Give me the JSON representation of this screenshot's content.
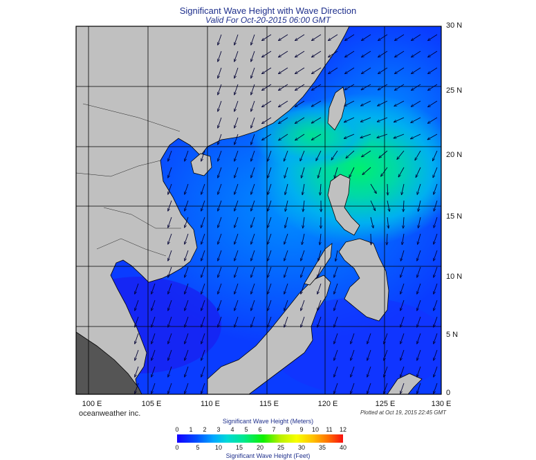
{
  "title": "Significant Wave Height with Wave Direction",
  "subtitle": "Valid For Oct-20-2015 06:00 GMT",
  "latitude_labels": [
    "30 N",
    "25 N",
    "20 N",
    "15 N",
    "10 N",
    "5 N",
    "0"
  ],
  "longitude_labels": [
    "100 E",
    "105 E",
    "110 E",
    "115 E",
    "120 E",
    "125 E",
    "130 E"
  ],
  "credit": "oceanweather inc.",
  "plotted": "Plotted at Oct 19, 2015 22:45 GMT",
  "colorbar": {
    "title_meters": "Significant Wave Height (Meters)",
    "title_feet": "Significant Wave Height (Feet)",
    "meters_ticks": [
      "0",
      "1",
      "2",
      "3",
      "4",
      "5",
      "6",
      "7",
      "8",
      "9",
      "10",
      "11",
      "12"
    ],
    "feet_ticks": [
      "0",
      "5",
      "10",
      "15",
      "20",
      "25",
      "30",
      "35",
      "40"
    ]
  },
  "colors": {
    "land": "#c0c0c0",
    "sea_low": "#1a2cff",
    "sea_mid": "#0088ff",
    "peak": "#00e890",
    "title": "#1e2f8c"
  },
  "chart_data": {
    "type": "heatmap",
    "xlim": [
      100,
      130
    ],
    "ylim": [
      0,
      30
    ],
    "grid": true,
    "peak_wave_height_m": 5,
    "peak_location": {
      "lon": 123.5,
      "lat": 19
    }
  }
}
